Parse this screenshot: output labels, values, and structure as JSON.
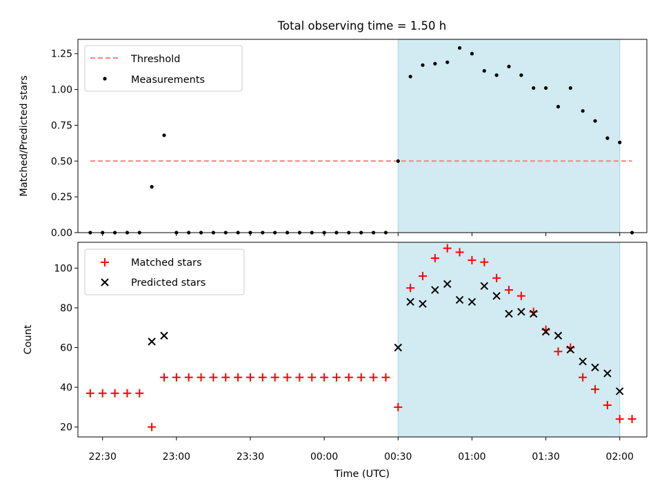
{
  "figure": {
    "title": "Total observing time = 1.50 h",
    "xlabel": "Time (UTC)",
    "x_tick_labels": [
      "22:30",
      "23:00",
      "23:30",
      "00:00",
      "00:30",
      "01:00",
      "01:30",
      "02:00"
    ]
  },
  "chart_data": [
    {
      "type": "scatter",
      "panel": "top",
      "ylabel": "Matched/Predicted stars",
      "ylim": [
        0,
        1.35
      ],
      "yticks": [
        "0.00",
        "0.25",
        "0.50",
        "0.75",
        "1.00",
        "1.25"
      ],
      "ytick_values": [
        0,
        0.25,
        0.5,
        0.75,
        1.0,
        1.25
      ],
      "xlim": [
        "22:20",
        "02:11"
      ],
      "legend": {
        "position": "top-left",
        "entries": [
          "Threshold",
          "Measurements"
        ]
      },
      "highlight_span": {
        "x": [
          "00:30",
          "02:00"
        ],
        "color": "#add8e6"
      },
      "threshold": {
        "name": "Threshold",
        "y": 0.5,
        "x": [
          "22:25",
          "02:05"
        ],
        "color": "#ff7f7f",
        "style": "dashed"
      },
      "series": [
        {
          "name": "Measurements",
          "color": "#000000",
          "marker": "dot",
          "x": [
            "22:25",
            "22:30",
            "22:35",
            "22:40",
            "22:45",
            "22:50",
            "22:55",
            "23:00",
            "23:05",
            "23:10",
            "23:15",
            "23:20",
            "23:25",
            "23:30",
            "23:35",
            "23:40",
            "23:45",
            "23:50",
            "23:55",
            "00:00",
            "00:05",
            "00:10",
            "00:15",
            "00:20",
            "00:25",
            "00:30",
            "00:35",
            "00:40",
            "00:45",
            "00:50",
            "00:55",
            "01:00",
            "01:05",
            "01:10",
            "01:15",
            "01:20",
            "01:25",
            "01:30",
            "01:35",
            "01:40",
            "01:45",
            "01:50",
            "01:55",
            "02:00",
            "02:05"
          ],
          "y": [
            0,
            0,
            0,
            0,
            0,
            0.32,
            0.68,
            0,
            0,
            0,
            0,
            0,
            0,
            0,
            0,
            0,
            0,
            0,
            0,
            0,
            0,
            0,
            0,
            0,
            0,
            0.5,
            1.09,
            1.17,
            1.18,
            1.19,
            1.29,
            1.25,
            1.13,
            1.1,
            1.16,
            1.1,
            1.01,
            1.01,
            0.88,
            1.01,
            0.85,
            0.78,
            0.66,
            0.63,
            0
          ]
        }
      ]
    },
    {
      "type": "scatter",
      "panel": "bottom",
      "ylabel": "Count",
      "ylim": [
        15,
        113
      ],
      "yticks": [
        "20",
        "40",
        "60",
        "80",
        "100"
      ],
      "ytick_values": [
        20,
        40,
        60,
        80,
        100
      ],
      "xlim": [
        "22:20",
        "02:11"
      ],
      "legend": {
        "position": "top-left",
        "entries": [
          "Matched stars",
          "Predicted stars"
        ]
      },
      "highlight_span": {
        "x": [
          "00:30",
          "02:00"
        ],
        "color": "#add8e6"
      },
      "series": [
        {
          "name": "Matched stars",
          "color": "#ff0000",
          "marker": "plus",
          "x": [
            "22:25",
            "22:30",
            "22:35",
            "22:40",
            "22:45",
            "22:50",
            "22:55",
            "23:00",
            "23:05",
            "23:10",
            "23:15",
            "23:20",
            "23:25",
            "23:30",
            "23:35",
            "23:40",
            "23:45",
            "23:50",
            "23:55",
            "00:00",
            "00:05",
            "00:10",
            "00:15",
            "00:20",
            "00:25",
            "00:30",
            "00:35",
            "00:40",
            "00:45",
            "00:50",
            "00:55",
            "01:00",
            "01:05",
            "01:10",
            "01:15",
            "01:20",
            "01:25",
            "01:30",
            "01:35",
            "01:40",
            "01:45",
            "01:50",
            "01:55",
            "02:00",
            "02:05"
          ],
          "y": [
            37,
            37,
            37,
            37,
            37,
            20,
            45,
            45,
            45,
            45,
            45,
            45,
            45,
            45,
            45,
            45,
            45,
            45,
            45,
            45,
            45,
            45,
            45,
            45,
            45,
            30,
            90,
            96,
            105,
            110,
            108,
            104,
            103,
            95,
            89,
            86,
            78,
            69,
            58,
            60,
            45,
            39,
            31,
            24,
            24
          ]
        },
        {
          "name": "Predicted stars",
          "color": "#000000",
          "marker": "x",
          "x": [
            "22:50",
            "22:55",
            "00:30",
            "00:35",
            "00:40",
            "00:45",
            "00:50",
            "00:55",
            "01:00",
            "01:05",
            "01:10",
            "01:15",
            "01:20",
            "01:25",
            "01:30",
            "01:35",
            "01:40",
            "01:45",
            "01:50",
            "01:55",
            "02:00"
          ],
          "y": [
            63,
            66,
            60,
            83,
            82,
            89,
            92,
            84,
            83,
            91,
            86,
            77,
            78,
            77,
            68,
            66,
            59,
            53,
            50,
            47,
            38
          ]
        }
      ]
    }
  ]
}
